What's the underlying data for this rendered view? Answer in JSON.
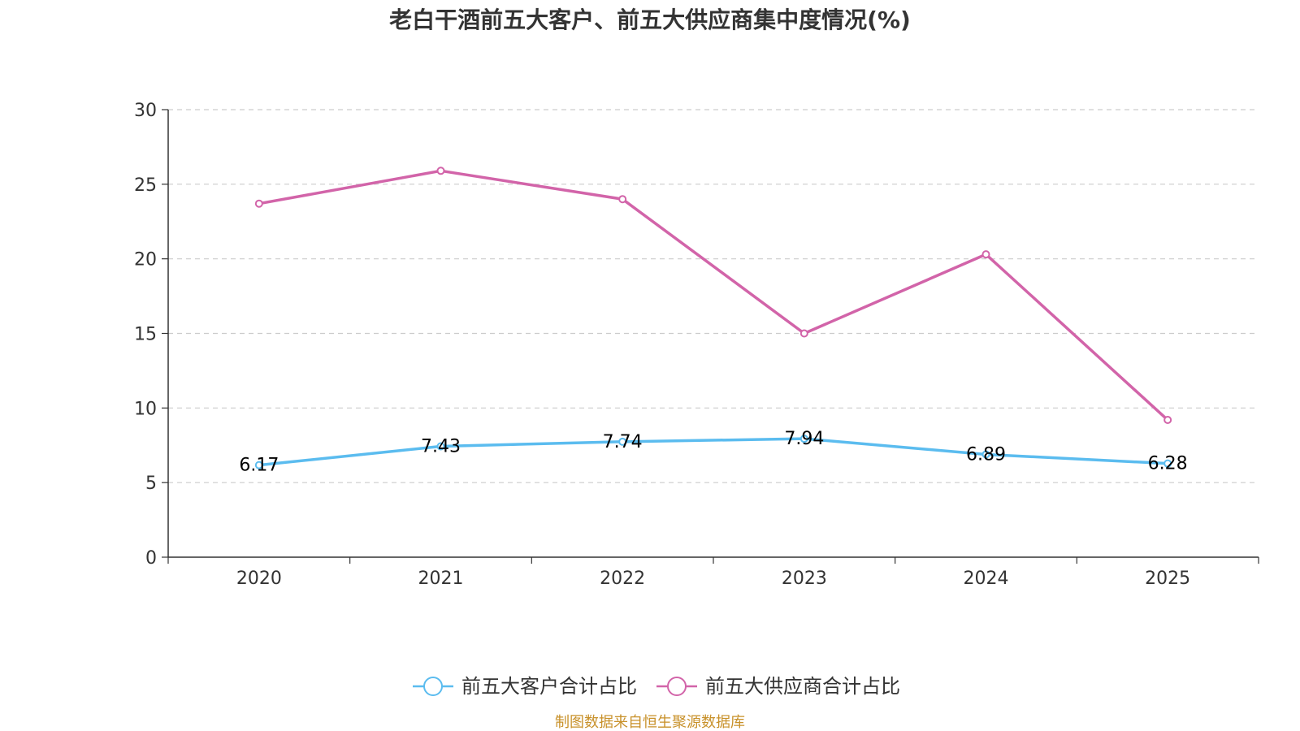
{
  "chart_data": {
    "type": "line",
    "title": "老白干酒前五大客户、前五大供应商集中度情况(%)",
    "categories": [
      "2020",
      "2021",
      "2022",
      "2023",
      "2024",
      "2025"
    ],
    "ylim": [
      0,
      30
    ],
    "yticks": [
      "0",
      "5",
      "10",
      "15",
      "20",
      "25",
      "30"
    ],
    "grid": true,
    "legend_position": "bottom-center",
    "series": [
      {
        "name": "前五大客户合计占比",
        "color": "#5bbcef",
        "values": [
          6.17,
          7.43,
          7.74,
          7.94,
          6.89,
          6.28
        ],
        "labels": [
          "6.17",
          "7.43",
          "7.74",
          "7.94",
          "6.89",
          "6.28"
        ],
        "show_labels": true
      },
      {
        "name": "前五大供应商合计占比",
        "color": "#d264a9",
        "values": [
          23.7,
          25.9,
          24.0,
          15.0,
          20.3,
          9.2
        ],
        "show_labels": false
      }
    ]
  },
  "source_text": "制图数据来自恒生聚源数据库",
  "source_color": "#c8912a"
}
